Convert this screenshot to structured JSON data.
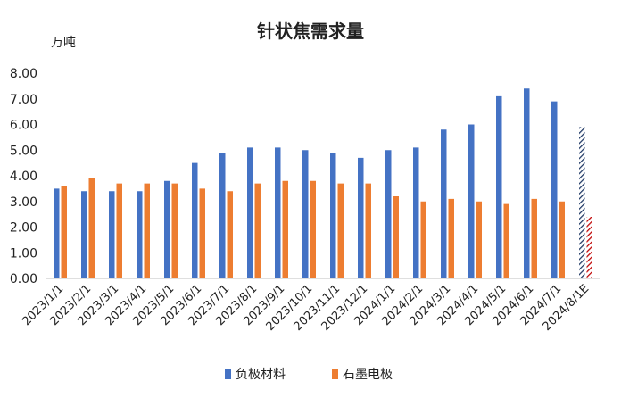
{
  "chart_data": {
    "type": "bar",
    "title": "针状焦需求量",
    "ylabel": "万吨",
    "ylim": [
      0,
      8
    ],
    "yticks": [
      "0.00",
      "1.00",
      "2.00",
      "3.00",
      "4.00",
      "5.00",
      "6.00",
      "7.00",
      "8.00"
    ],
    "categories": [
      "2023/1/1",
      "2023/2/1",
      "2023/3/1",
      "2023/4/1",
      "2023/5/1",
      "2023/6/1",
      "2023/7/1",
      "2023/8/1",
      "2023/9/1",
      "2023/10/1",
      "2023/11/1",
      "2023/12/1",
      "2024/1/1",
      "2024/2/1",
      "2024/3/1",
      "2024/4/1",
      "2024/5/1",
      "2024/6/1",
      "2024/7/1",
      "2024/8/1E"
    ],
    "series": [
      {
        "name": "负极材料",
        "color": "#4472C4",
        "values": [
          3.5,
          3.4,
          3.4,
          3.4,
          3.8,
          4.5,
          4.9,
          5.1,
          5.1,
          5.0,
          4.9,
          4.7,
          5.0,
          5.1,
          5.8,
          6.0,
          7.1,
          7.4,
          6.9,
          5.9
        ]
      },
      {
        "name": "石墨电极",
        "color": "#ED7D31",
        "values": [
          3.6,
          3.9,
          3.7,
          3.7,
          3.7,
          3.5,
          3.4,
          3.7,
          3.8,
          3.8,
          3.7,
          3.7,
          3.2,
          3.0,
          3.1,
          3.0,
          2.9,
          3.1,
          3.0,
          2.4
        ]
      }
    ],
    "estimate_category": "2024/8/1E",
    "estimate_colors": [
      "#1F3864",
      "#C00000"
    ],
    "grid": false,
    "legend": "bottom"
  }
}
